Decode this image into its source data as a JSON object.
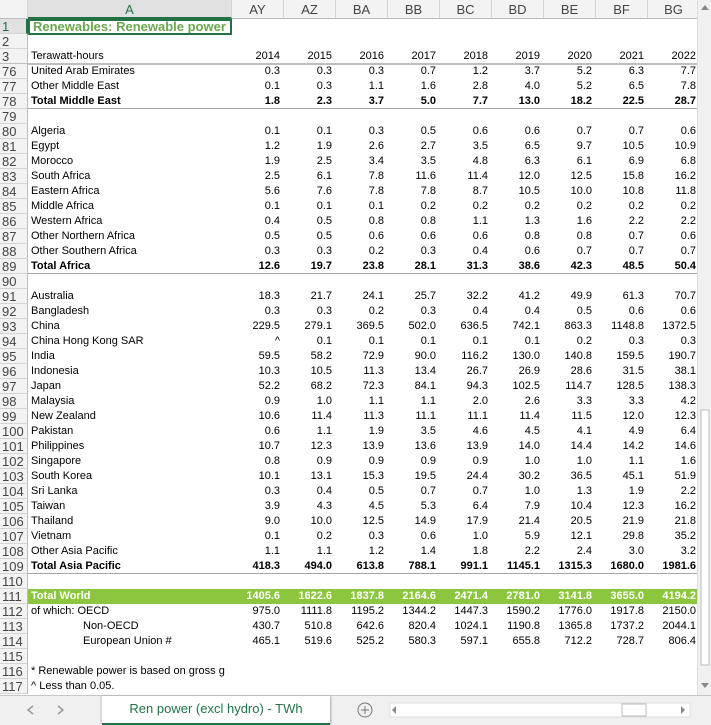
{
  "columns": [
    "A",
    "AY",
    "AZ",
    "BA",
    "BB",
    "BC",
    "BD",
    "BE",
    "BF",
    "BG"
  ],
  "rows": [
    {
      "number": 1,
      "label": "Renewables: Renewable power",
      "style": "title"
    },
    {
      "number": 2
    },
    {
      "number": 3,
      "label": "Terawatt-hours",
      "cells": [
        "2014",
        "2015",
        "2016",
        "2017",
        "2018",
        "2019",
        "2020",
        "2021",
        "2022"
      ],
      "style": "header"
    },
    {
      "number": 76,
      "label": "United Arab Emirates",
      "cells": [
        "0.3",
        "0.3",
        "0.3",
        "0.7",
        "1.2",
        "3.7",
        "5.2",
        "6.3",
        "7.7"
      ]
    },
    {
      "number": 77,
      "label": "Other Middle East",
      "cells": [
        "0.1",
        "0.3",
        "1.1",
        "1.6",
        "2.8",
        "4.0",
        "5.2",
        "6.5",
        "7.8"
      ]
    },
    {
      "number": 78,
      "label": "Total Middle East",
      "cells": [
        "1.8",
        "2.3",
        "3.7",
        "5.0",
        "7.7",
        "13.0",
        "18.2",
        "22.5",
        "28.7"
      ],
      "style": "total"
    },
    {
      "number": 79
    },
    {
      "number": 80,
      "label": "Algeria",
      "cells": [
        "0.1",
        "0.1",
        "0.3",
        "0.5",
        "0.6",
        "0.6",
        "0.7",
        "0.7",
        "0.6"
      ]
    },
    {
      "number": 81,
      "label": "Egypt",
      "cells": [
        "1.2",
        "1.9",
        "2.6",
        "2.7",
        "3.5",
        "6.5",
        "9.7",
        "10.5",
        "10.9"
      ]
    },
    {
      "number": 82,
      "label": "Morocco",
      "cells": [
        "1.9",
        "2.5",
        "3.4",
        "3.5",
        "4.8",
        "6.3",
        "6.1",
        "6.9",
        "6.8"
      ]
    },
    {
      "number": 83,
      "label": "South Africa",
      "cells": [
        "2.5",
        "6.1",
        "7.8",
        "11.6",
        "11.4",
        "12.0",
        "12.5",
        "15.8",
        "16.2"
      ]
    },
    {
      "number": 84,
      "label": "Eastern Africa",
      "cells": [
        "5.6",
        "7.6",
        "7.8",
        "7.8",
        "8.7",
        "10.5",
        "10.0",
        "10.8",
        "11.8"
      ]
    },
    {
      "number": 85,
      "label": "Middle Africa",
      "cells": [
        "0.1",
        "0.1",
        "0.1",
        "0.2",
        "0.2",
        "0.2",
        "0.2",
        "0.2",
        "0.2"
      ]
    },
    {
      "number": 86,
      "label": "Western Africa",
      "cells": [
        "0.4",
        "0.5",
        "0.8",
        "0.8",
        "1.1",
        "1.3",
        "1.6",
        "2.2",
        "2.2"
      ]
    },
    {
      "number": 87,
      "label": "Other Northern Africa",
      "cells": [
        "0.5",
        "0.5",
        "0.6",
        "0.6",
        "0.6",
        "0.8",
        "0.8",
        "0.7",
        "0.6"
      ]
    },
    {
      "number": 88,
      "label": "Other Southern Africa",
      "cells": [
        "0.3",
        "0.3",
        "0.2",
        "0.3",
        "0.4",
        "0.6",
        "0.7",
        "0.7",
        "0.7"
      ]
    },
    {
      "number": 89,
      "label": "Total Africa",
      "cells": [
        "12.6",
        "19.7",
        "23.8",
        "28.1",
        "31.3",
        "38.6",
        "42.3",
        "48.5",
        "50.4"
      ],
      "style": "total"
    },
    {
      "number": 90
    },
    {
      "number": 91,
      "label": "Australia",
      "cells": [
        "18.3",
        "21.7",
        "24.1",
        "25.7",
        "32.2",
        "41.2",
        "49.9",
        "61.3",
        "70.7"
      ]
    },
    {
      "number": 92,
      "label": "Bangladesh",
      "cells": [
        "0.3",
        "0.3",
        "0.2",
        "0.3",
        "0.4",
        "0.4",
        "0.5",
        "0.6",
        "0.6"
      ]
    },
    {
      "number": 93,
      "label": "China",
      "cells": [
        "229.5",
        "279.1",
        "369.5",
        "502.0",
        "636.5",
        "742.1",
        "863.3",
        "1148.8",
        "1372.5"
      ]
    },
    {
      "number": 94,
      "label": "China Hong Kong SAR",
      "cells": [
        "^",
        "0.1",
        "0.1",
        "0.1",
        "0.1",
        "0.1",
        "0.2",
        "0.3",
        "0.3"
      ]
    },
    {
      "number": 95,
      "label": "India",
      "cells": [
        "59.5",
        "58.2",
        "72.9",
        "90.0",
        "116.2",
        "130.0",
        "140.8",
        "159.5",
        "190.7"
      ]
    },
    {
      "number": 96,
      "label": "Indonesia",
      "cells": [
        "10.3",
        "10.5",
        "11.3",
        "13.4",
        "26.7",
        "26.9",
        "28.6",
        "31.5",
        "38.1"
      ]
    },
    {
      "number": 97,
      "label": "Japan",
      "cells": [
        "52.2",
        "68.2",
        "72.3",
        "84.1",
        "94.3",
        "102.5",
        "114.7",
        "128.5",
        "138.3"
      ]
    },
    {
      "number": 98,
      "label": "Malaysia",
      "cells": [
        "0.9",
        "1.0",
        "1.1",
        "1.1",
        "2.0",
        "2.6",
        "3.3",
        "3.3",
        "4.2"
      ]
    },
    {
      "number": 99,
      "label": "New Zealand",
      "cells": [
        "10.6",
        "11.4",
        "11.3",
        "11.1",
        "11.1",
        "11.4",
        "11.5",
        "12.0",
        "12.3"
      ]
    },
    {
      "number": 100,
      "label": "Pakistan",
      "cells": [
        "0.6",
        "1.1",
        "1.9",
        "3.5",
        "4.6",
        "4.5",
        "4.1",
        "4.9",
        "6.4"
      ]
    },
    {
      "number": 101,
      "label": "Philippines",
      "cells": [
        "10.7",
        "12.3",
        "13.9",
        "13.6",
        "13.9",
        "14.0",
        "14.4",
        "14.2",
        "14.6"
      ]
    },
    {
      "number": 102,
      "label": "Singapore",
      "cells": [
        "0.8",
        "0.9",
        "0.9",
        "0.9",
        "0.9",
        "1.0",
        "1.0",
        "1.1",
        "1.6"
      ]
    },
    {
      "number": 103,
      "label": "South Korea",
      "cells": [
        "10.1",
        "13.1",
        "15.3",
        "19.5",
        "24.4",
        "30.2",
        "36.5",
        "45.1",
        "51.9"
      ]
    },
    {
      "number": 104,
      "label": "Sri Lanka",
      "cells": [
        "0.3",
        "0.4",
        "0.5",
        "0.7",
        "0.7",
        "1.0",
        "1.3",
        "1.9",
        "2.2"
      ]
    },
    {
      "number": 105,
      "label": "Taiwan",
      "cells": [
        "3.9",
        "4.3",
        "4.5",
        "5.3",
        "6.4",
        "7.9",
        "10.4",
        "12.3",
        "16.2"
      ]
    },
    {
      "number": 106,
      "label": "Thailand",
      "cells": [
        "9.0",
        "10.0",
        "12.5",
        "14.9",
        "17.9",
        "21.4",
        "20.5",
        "21.9",
        "21.8"
      ]
    },
    {
      "number": 107,
      "label": "Vietnam",
      "cells": [
        "0.1",
        "0.2",
        "0.3",
        "0.6",
        "1.0",
        "5.9",
        "12.1",
        "29.8",
        "35.2"
      ]
    },
    {
      "number": 108,
      "label": "Other Asia Pacific",
      "cells": [
        "1.1",
        "1.1",
        "1.2",
        "1.4",
        "1.8",
        "2.2",
        "2.4",
        "3.0",
        "3.2"
      ]
    },
    {
      "number": 109,
      "label": "Total Asia Pacific",
      "cells": [
        "418.3",
        "494.0",
        "613.8",
        "788.1",
        "991.1",
        "1145.1",
        "1315.3",
        "1680.0",
        "1981.6"
      ],
      "style": "total"
    },
    {
      "number": 110
    },
    {
      "number": 111,
      "label": "Total World",
      "cells": [
        "1405.6",
        "1622.6",
        "1837.8",
        "2164.6",
        "2471.4",
        "2781.0",
        "3141.8",
        "3655.0",
        "4194.2"
      ],
      "style": "world"
    },
    {
      "number": 112,
      "label": "of which: OECD",
      "cells": [
        "975.0",
        "1111.8",
        "1195.2",
        "1344.2",
        "1447.3",
        "1590.2",
        "1776.0",
        "1917.8",
        "2150.0"
      ]
    },
    {
      "number": 113,
      "label": "Non-OECD",
      "cells": [
        "430.7",
        "510.8",
        "642.6",
        "820.4",
        "1024.1",
        "1190.8",
        "1365.8",
        "1737.2",
        "2044.1"
      ],
      "style": "indent"
    },
    {
      "number": 114,
      "label": "European Union #",
      "cells": [
        "465.1",
        "519.6",
        "525.2",
        "580.3",
        "597.1",
        "655.8",
        "712.2",
        "728.7",
        "806.4"
      ],
      "style": "indent"
    },
    {
      "number": 115
    },
    {
      "number": 116,
      "label": "*  Renewable power is based on gross g"
    },
    {
      "number": 117,
      "label": "^ Less than 0.05."
    }
  ],
  "sheet_tab": "Ren power (excl hydro) - TWh"
}
